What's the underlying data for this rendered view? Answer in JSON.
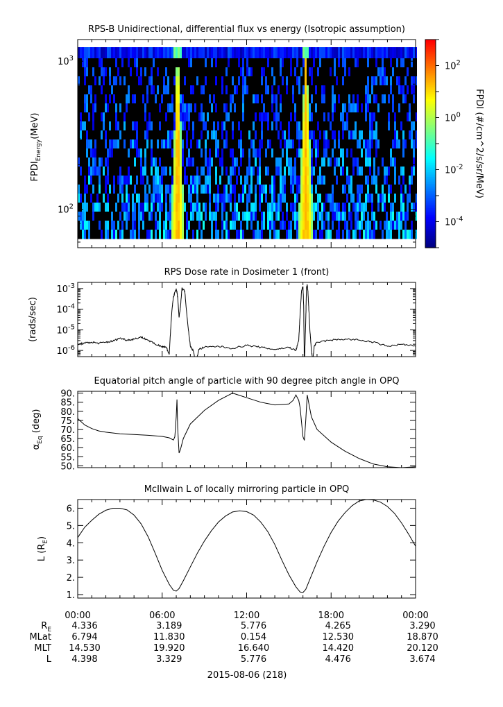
{
  "chart_data": [
    {
      "id": "spectrogram",
      "type": "heatmap",
      "title": "RPS-B  Unidirectional, differential flux vs energy (Isotropic assumption)",
      "ylabel": "FPDI",
      "ylabel_sub": "Energy",
      "ylabel_unit": "(MeV)",
      "yscale": "log",
      "ylim": [
        55,
        1400
      ],
      "yticks": [
        {
          "base": "10",
          "exp": "2",
          "value": 100
        },
        {
          "base": "10",
          "exp": "3",
          "value": 1000
        }
      ],
      "xlim": [
        0,
        24
      ],
      "colorbar": {
        "label": "FPDI (#/cm^2/s/sr/MeV)",
        "scale": "log",
        "range": [
          -5,
          3
        ],
        "ticks": [
          {
            "base": "10",
            "exp": "2",
            "value": 2
          },
          {
            "base": "10",
            "exp": "0",
            "value": 0
          },
          {
            "base": "10",
            "exp": "-2",
            "value": -2
          },
          {
            "base": "10",
            "exp": "-4",
            "value": -4
          }
        ],
        "colors": [
          "#00007f",
          "#0000ff",
          "#007fff",
          "#00ffff",
          "#7fff7f",
          "#ffff00",
          "#ff7f00",
          "#ff0000"
        ]
      },
      "peaks": [
        {
          "center_hours": 7.1,
          "half_width_low": 0.5,
          "half_width_high": 0.06
        },
        {
          "center_hours": 16.2,
          "half_width_low": 0.55,
          "half_width_high": 0.08
        }
      ]
    },
    {
      "id": "dose",
      "type": "line",
      "title": "RPS  Dose rate in Dosimeter 1 (front)",
      "ylabel": "(rads/sec)",
      "yscale": "log",
      "ylim": [
        -6.3,
        -2.7
      ],
      "yticks": [
        {
          "base": "10",
          "exp": "-3",
          "value": -3
        },
        {
          "base": "10",
          "exp": "-4",
          "value": -4
        },
        {
          "base": "10",
          "exp": "-5",
          "value": -5
        },
        {
          "base": "10",
          "exp": "-6",
          "value": -6
        }
      ],
      "xlim": [
        0,
        24
      ],
      "x": [
        0,
        0.5,
        1,
        1.5,
        2,
        2.5,
        3,
        3.5,
        4,
        4.5,
        5,
        5.5,
        6,
        6.3,
        6.5,
        6.6,
        6.7,
        6.8,
        7.0,
        7.1,
        7.2,
        7.3,
        7.4,
        7.6,
        7.8,
        8.0,
        8.2,
        8.4,
        8.6,
        9,
        10,
        11,
        12,
        13,
        14,
        15,
        15.5,
        15.7,
        15.8,
        15.9,
        16.0,
        16.05,
        16.1,
        16.2,
        16.25,
        16.3,
        16.35,
        16.4,
        16.5,
        16.6,
        16.7,
        16.8,
        17,
        18,
        19,
        20,
        21,
        22,
        23,
        24
      ],
      "y": [
        -5.7,
        -5.65,
        -5.6,
        -5.65,
        -5.6,
        -5.55,
        -5.4,
        -5.5,
        -5.45,
        -5.35,
        -5.5,
        -5.7,
        -5.8,
        -5.85,
        -6.2,
        -5.0,
        -4.0,
        -3.4,
        -3.0,
        -3.4,
        -4.4,
        -3.9,
        -3.0,
        -3.1,
        -4.6,
        -5.8,
        -6.0,
        -6.6,
        -5.95,
        -5.85,
        -5.8,
        -5.9,
        -5.75,
        -5.85,
        -5.95,
        -5.85,
        -6.0,
        -5.5,
        -4.2,
        -3.1,
        -2.9,
        -3.8,
        -6.8,
        -4.5,
        -3.0,
        -2.8,
        -3.1,
        -3.8,
        -5.1,
        -6.0,
        -6.5,
        -5.8,
        -5.6,
        -5.5,
        -5.45,
        -5.5,
        -5.6,
        -5.8,
        -5.7,
        -5.8
      ]
    },
    {
      "id": "pitch",
      "type": "line",
      "title": "Equatorial pitch angle of particle with 90 degree pitch angle in OPQ",
      "ylabel": "α",
      "ylabel_sub": "Eq",
      "ylabel_unit": " (deg)",
      "ylim": [
        49,
        91
      ],
      "yticks": [
        90,
        85,
        80,
        75,
        70,
        65,
        60,
        55,
        50
      ],
      "tick_labels": [
        "90.",
        "85.",
        "80.",
        "75.",
        "70.",
        "65.",
        "60.",
        "55.",
        "50."
      ],
      "xlim": [
        0,
        24
      ],
      "x": [
        0,
        0.5,
        1,
        1.5,
        2,
        3,
        4,
        5,
        6,
        6.5,
        6.8,
        6.9,
        7.0,
        7.05,
        7.1,
        7.2,
        7.3,
        7.5,
        8,
        9,
        10,
        11,
        12,
        13,
        14,
        15,
        15.3,
        15.5,
        15.7,
        15.8,
        15.9,
        16.0,
        16.1,
        16.2,
        16.3,
        16.4,
        16.6,
        17,
        18,
        19,
        20,
        21,
        22,
        23,
        24
      ],
      "y": [
        76,
        72.5,
        70.5,
        69.2,
        68.5,
        67.6,
        67.2,
        66.8,
        66.2,
        65.4,
        64.2,
        66,
        77,
        86.5,
        71,
        57,
        59,
        65,
        73,
        80.5,
        86,
        90,
        87.5,
        85,
        83.5,
        84,
        86,
        89,
        86,
        82,
        74,
        66,
        64,
        75,
        89,
        85,
        77,
        70,
        63,
        58,
        54,
        51,
        49.5,
        49,
        49.5
      ]
    },
    {
      "id": "lshell",
      "type": "line",
      "title": "McIlwain L of locally mirroring particle in OPQ",
      "ylabel": "L (R",
      "ylabel_sub": "E",
      "ylabel_unit": ")",
      "ylim": [
        0.8,
        6.5
      ],
      "yticks": [
        6,
        5,
        4,
        3,
        2,
        1
      ],
      "tick_labels": [
        "6.",
        "5.",
        "4.",
        "3.",
        "2.",
        "1."
      ],
      "xlim": [
        0,
        24
      ],
      "x": [
        0,
        0.5,
        1,
        1.5,
        2,
        2.5,
        3,
        3.5,
        4,
        4.5,
        5,
        5.5,
        6,
        6.5,
        6.8,
        7.0,
        7.2,
        7.5,
        8,
        8.5,
        9,
        9.5,
        10,
        10.5,
        11,
        11.5,
        12,
        12.5,
        13,
        13.5,
        14,
        14.5,
        15,
        15.5,
        15.8,
        16.0,
        16.2,
        16.5,
        17,
        17.5,
        18,
        18.5,
        19,
        19.5,
        20,
        20.5,
        21,
        21.5,
        22,
        22.5,
        23,
        23.5,
        24
      ],
      "y": [
        4.3,
        4.9,
        5.3,
        5.65,
        5.88,
        6.0,
        6.0,
        5.9,
        5.6,
        5.1,
        4.35,
        3.4,
        2.4,
        1.6,
        1.25,
        1.2,
        1.35,
        1.8,
        2.6,
        3.4,
        4.1,
        4.7,
        5.2,
        5.55,
        5.78,
        5.85,
        5.8,
        5.6,
        5.2,
        4.65,
        3.9,
        3.0,
        2.15,
        1.45,
        1.15,
        1.12,
        1.3,
        1.9,
        2.9,
        3.8,
        4.6,
        5.25,
        5.75,
        6.15,
        6.42,
        6.5,
        6.48,
        6.35,
        6.1,
        5.7,
        5.15,
        4.5,
        3.8
      ]
    }
  ],
  "ephemeris": {
    "times": [
      "00:00",
      "06:00",
      "12:00",
      "18:00",
      "00:00"
    ],
    "rows": [
      {
        "label": "R",
        "label_sub": "E",
        "values": [
          "4.336",
          "3.189",
          "5.776",
          "4.265",
          "3.290"
        ]
      },
      {
        "label": "MLat",
        "label_sub": "",
        "values": [
          "6.794",
          "11.830",
          "0.154",
          "12.530",
          "18.870"
        ]
      },
      {
        "label": "MLT",
        "label_sub": "",
        "values": [
          "14.530",
          "19.920",
          "16.640",
          "14.420",
          "20.120"
        ]
      },
      {
        "label": "L",
        "label_sub": "",
        "values": [
          "4.398",
          "3.329",
          "5.776",
          "4.476",
          "3.674"
        ]
      }
    ],
    "date": "2015-08-06 (218)"
  }
}
